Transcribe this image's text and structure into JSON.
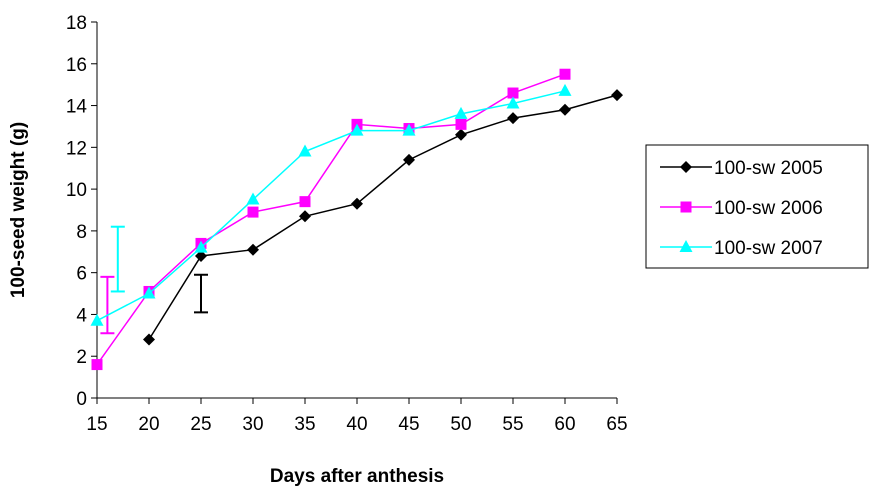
{
  "chart_data": {
    "type": "line",
    "xlabel": "Days after anthesis",
    "ylabel": "100-seed weight (g)",
    "xlim": [
      15,
      65
    ],
    "ylim": [
      0,
      18
    ],
    "xticks": [
      15,
      20,
      25,
      30,
      35,
      40,
      45,
      50,
      55,
      60,
      65
    ],
    "yticks": [
      0,
      2,
      4,
      6,
      8,
      10,
      12,
      14,
      16,
      18
    ],
    "grid": false,
    "legend_position": "right",
    "series": [
      {
        "name": "100-sw 2005",
        "color": "#000000",
        "marker": "diamond",
        "x": [
          20,
          25,
          30,
          35,
          40,
          45,
          50,
          55,
          60,
          65
        ],
        "y": [
          2.8,
          6.8,
          7.1,
          8.7,
          9.3,
          11.4,
          12.6,
          13.4,
          13.8,
          14.5
        ],
        "error_bar": {
          "x": 25,
          "low": 4.1,
          "high": 5.9
        }
      },
      {
        "name": "100-sw 2006",
        "color": "#ff00ff",
        "marker": "square",
        "x": [
          15,
          20,
          25,
          30,
          35,
          40,
          45,
          50,
          55,
          60
        ],
        "y": [
          1.6,
          5.1,
          7.4,
          8.9,
          9.4,
          13.1,
          12.9,
          13.1,
          14.6,
          15.5
        ],
        "error_bar": {
          "x": 16,
          "low": 3.1,
          "high": 5.8
        }
      },
      {
        "name": "100-sw 2007",
        "color": "#00ffff",
        "marker": "triangle",
        "x": [
          15,
          20,
          25,
          30,
          35,
          40,
          45,
          50,
          55,
          60
        ],
        "y": [
          3.7,
          5.0,
          7.2,
          9.5,
          11.8,
          12.8,
          12.8,
          13.6,
          14.1,
          14.7
        ],
        "error_bar": {
          "x": 17,
          "low": 5.1,
          "high": 8.2
        }
      }
    ]
  }
}
